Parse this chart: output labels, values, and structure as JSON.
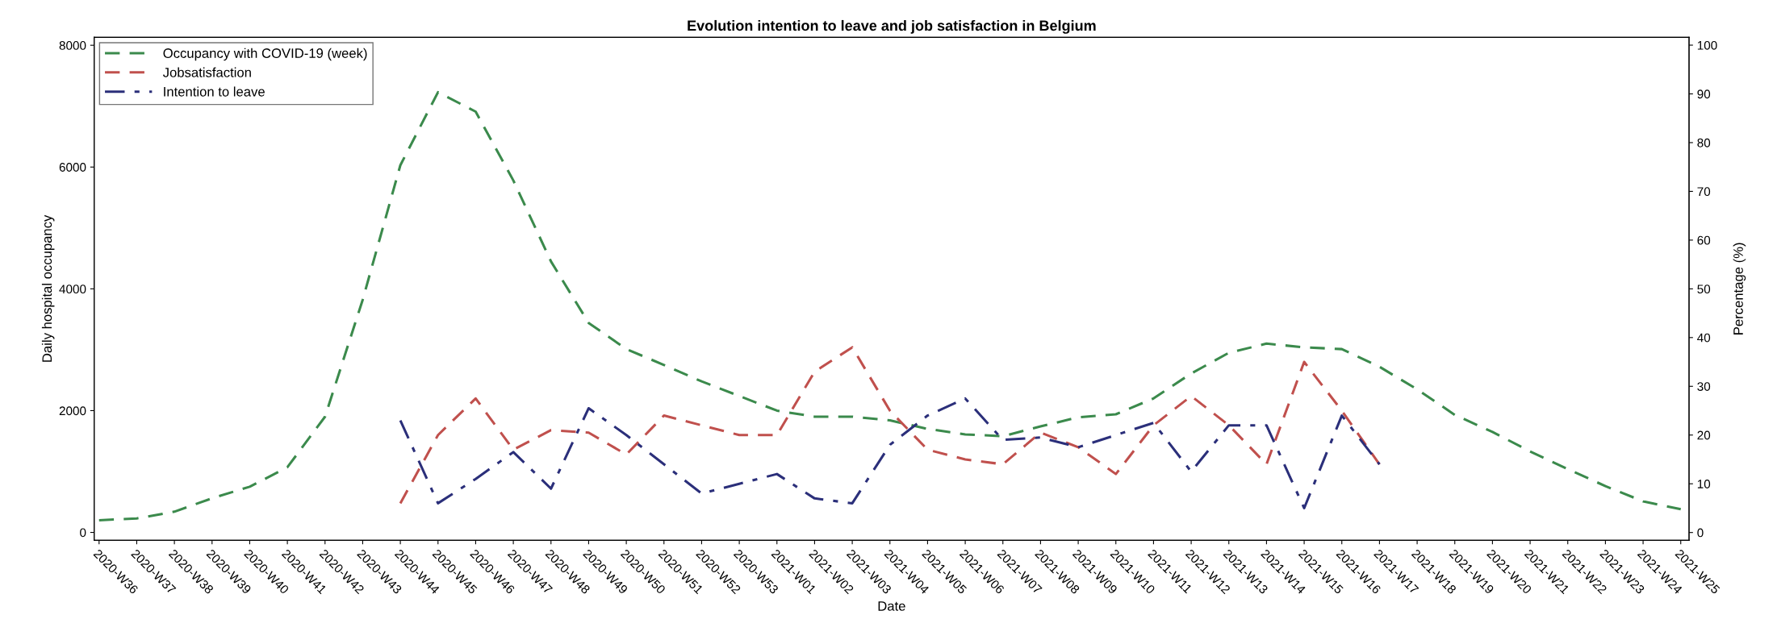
{
  "chart_data": {
    "type": "line",
    "title": "Evolution intention to leave and job satisfaction in Belgium",
    "xlabel": "Date",
    "ylabel": "Daily hospital occupancy",
    "y2label": "Percentage (%)",
    "categories": [
      "2020-W36",
      "2020-W37",
      "2020-W38",
      "2020-W39",
      "2020-W40",
      "2020-W41",
      "2020-W42",
      "2020-W43",
      "2020-W44",
      "2020-W45",
      "2020-W46",
      "2020-W47",
      "2020-W48",
      "2020-W49",
      "2020-W50",
      "2020-W51",
      "2020-W52",
      "2020-W53",
      "2021-W01",
      "2021-W02",
      "2021-W03",
      "2021-W04",
      "2021-W05",
      "2021-W06",
      "2021-W07",
      "2021-W08",
      "2021-W09",
      "2021-W10",
      "2021-W11",
      "2021-W12",
      "2021-W13",
      "2021-W14",
      "2021-W15",
      "2021-W16",
      "2021-W17",
      "2021-W18",
      "2021-W19",
      "2021-W20",
      "2021-W21",
      "2021-W22",
      "2021-W23",
      "2021-W24",
      "2021-W25"
    ],
    "series": [
      {
        "name": "Occupancy with COVID-19 (week)",
        "color": "#3b8a4c",
        "line_style": "dashed",
        "values": [
          200,
          230,
          340,
          560,
          750,
          1070,
          1900,
          3820,
          6030,
          7230,
          6910,
          5780,
          4450,
          3440,
          3010,
          2750,
          2480,
          2240,
          2000,
          1900,
          1900,
          1840,
          1700,
          1610,
          1580,
          1740,
          1890,
          1940,
          2200,
          2610,
          2950,
          3100,
          3040,
          3010,
          2720,
          2350,
          1930,
          1650,
          1330,
          1040,
          760,
          510,
          380
        ]
      },
      {
        "name": "Jobsatisfaction",
        "color": "#c0504d",
        "line_style": "dashed",
        "axis": "y2",
        "values": [
          null,
          null,
          null,
          null,
          null,
          null,
          null,
          null,
          6,
          20,
          27.5,
          17,
          21,
          20.5,
          16,
          24,
          22,
          20,
          20,
          33,
          38,
          25,
          17,
          15,
          14,
          20.5,
          17.5,
          12,
          22,
          28,
          22,
          14,
          35,
          25,
          14,
          null,
          null,
          null,
          null,
          null,
          null,
          null,
          null
        ]
      },
      {
        "name": "Intention to leave",
        "color": "#2b2f7a",
        "line_style": "dashdot",
        "axis": "y2",
        "values": [
          null,
          null,
          null,
          null,
          null,
          null,
          null,
          null,
          23,
          6,
          11,
          16.5,
          9,
          25.5,
          20,
          14,
          8,
          10,
          12,
          7,
          6,
          18,
          24,
          27.5,
          19,
          19.5,
          17.5,
          20,
          22.5,
          12.5,
          22,
          22,
          5,
          24,
          14,
          null,
          null,
          null,
          null,
          null,
          null,
          null,
          null
        ]
      }
    ],
    "ylim": [
      -130,
      8130
    ],
    "yticks": [
      0,
      2000,
      4000,
      6000,
      8000
    ],
    "y2lim": [
      -1.6,
      101.6
    ],
    "y2ticks": [
      0,
      10,
      20,
      30,
      40,
      50,
      60,
      70,
      80,
      90,
      100
    ],
    "legend": "top left",
    "grid": false,
    "marker": "none"
  }
}
